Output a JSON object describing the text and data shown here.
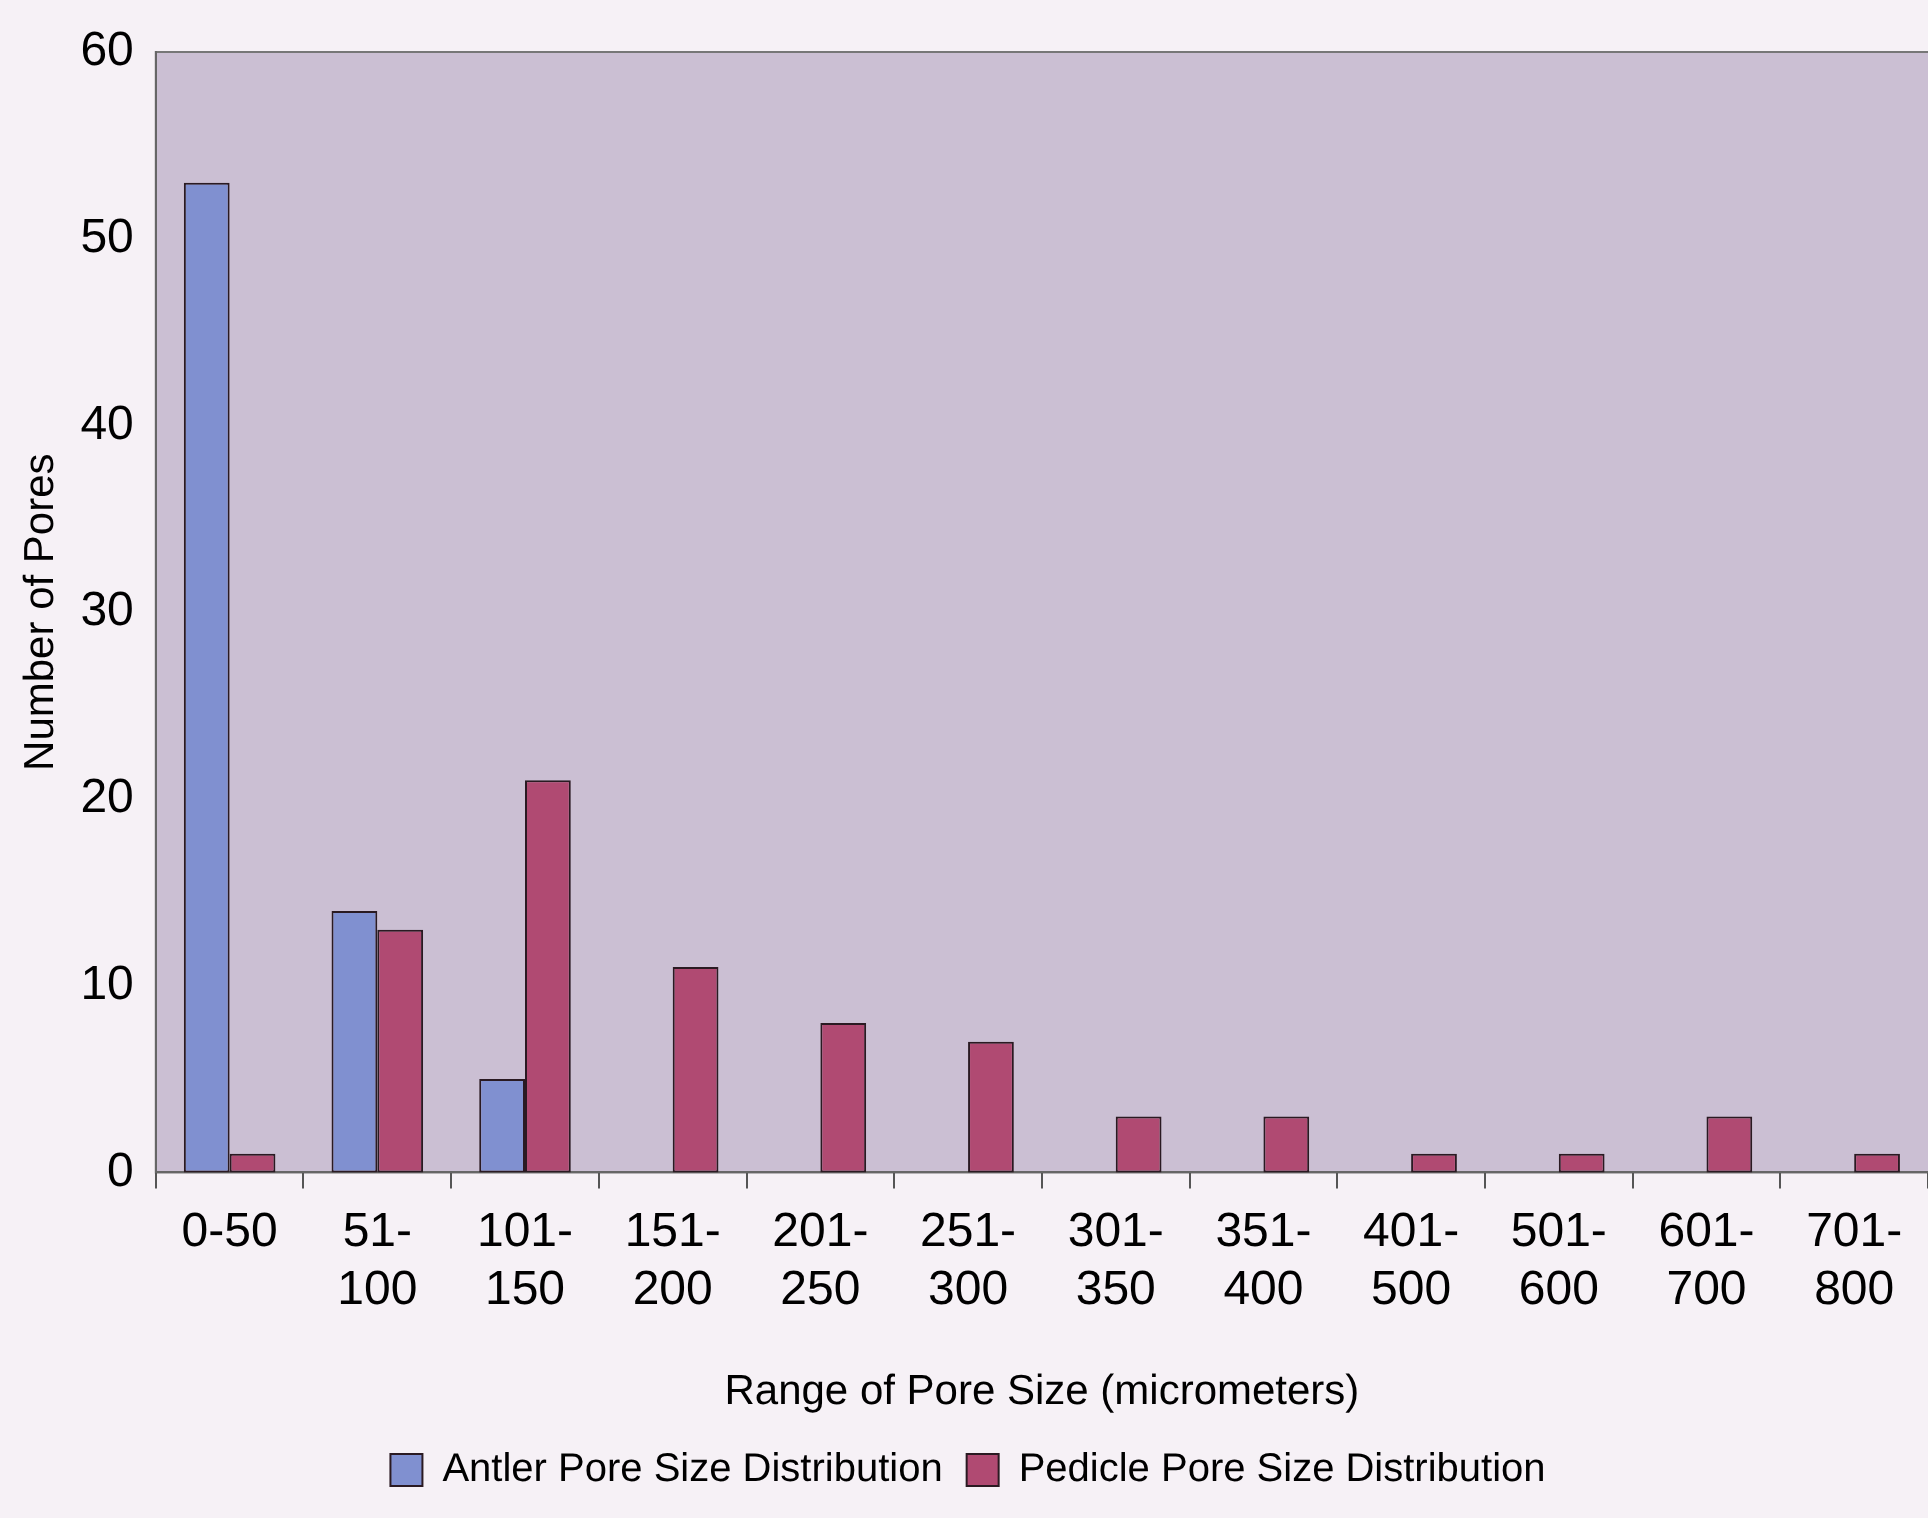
{
  "chart_data": {
    "type": "bar",
    "xlabel": "Range of Pore Size (micrometers)",
    "ylabel": "Number of Pores",
    "categories": [
      "0-50",
      "51-100",
      "101-150",
      "151-200",
      "201-250",
      "251-300",
      "301-350",
      "351-400",
      "401-500",
      "501-600",
      "601-700",
      "701-800"
    ],
    "series": [
      {
        "name": "Antler Pore Size Distribution",
        "color": "#8090d0",
        "values": [
          53,
          14,
          5,
          0,
          0,
          0,
          0,
          0,
          0,
          0,
          0,
          0
        ]
      },
      {
        "name": "Pedicle Pore Size Distribution",
        "color": "#b04a72",
        "values": [
          1,
          13,
          21,
          11,
          8,
          7,
          3,
          3,
          1,
          1,
          3,
          1
        ]
      }
    ],
    "ylim": [
      0,
      60
    ],
    "yticks": [
      0,
      10,
      20,
      30,
      40,
      50,
      60
    ],
    "grid": false,
    "legend": "bottom"
  }
}
